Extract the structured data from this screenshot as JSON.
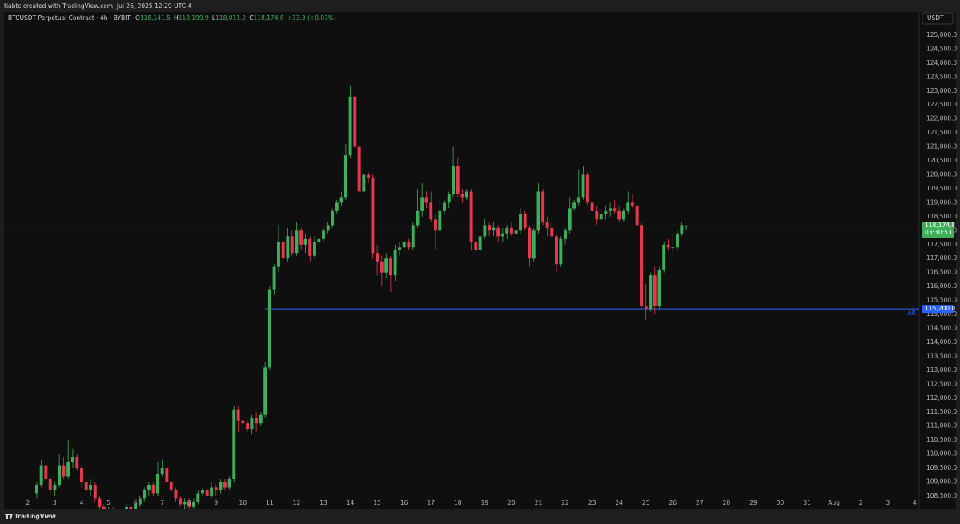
{
  "header": {
    "credit": "tiabtc created with TradingView.com, Jul 26, 2025 12:29 UTC-4"
  },
  "chart_data": {
    "type": "candlestick",
    "title": "BTCUSDT Perpetual Contract · 4h · BYBIT",
    "ohlc_legend": [
      {
        "key": "O",
        "value": "118,141.5"
      },
      {
        "key": "H",
        "value": "118,199.9"
      },
      {
        "key": "L",
        "value": "118,011.2"
      },
      {
        "key": "C",
        "value": "118,174.8"
      }
    ],
    "change": "+33.3 (+0.03%)",
    "currency": "USDT",
    "colors": {
      "up": "#3fae5a",
      "down": "#e8384f",
      "level": "#2962ff"
    },
    "grid": false,
    "xlim": [
      1.11,
      35.17
    ],
    "ylim": [
      108040,
      125830
    ],
    "xticks": [
      2,
      3,
      4,
      5,
      6,
      7,
      8,
      9,
      10,
      11,
      12,
      13,
      14,
      15,
      16,
      17,
      18,
      19,
      20,
      21,
      22,
      23,
      24,
      25,
      26,
      27,
      28,
      29,
      30,
      31,
      {
        "value": 32,
        "label": "Aug"
      },
      {
        "value": 33,
        "label": "2"
      },
      {
        "value": 34,
        "label": "3"
      },
      {
        "value": 35,
        "label": "4"
      }
    ],
    "yticks": [
      {
        "value": 108500,
        "label": "108,500.0"
      },
      {
        "value": 109000,
        "label": "109,000.0"
      },
      {
        "value": 109500,
        "label": "109,500.0"
      },
      {
        "value": 110000,
        "label": "110,000.0"
      },
      {
        "value": 110500,
        "label": "110,500.0"
      },
      {
        "value": 111000,
        "label": "111,000.0"
      },
      {
        "value": 111500,
        "label": "111,500.0"
      },
      {
        "value": 112000,
        "label": "112,000.0"
      },
      {
        "value": 112500,
        "label": "112,500.0"
      },
      {
        "value": 113000,
        "label": "113,000.0"
      },
      {
        "value": 113500,
        "label": "113,500.0"
      },
      {
        "value": 114000,
        "label": "114,000.0"
      },
      {
        "value": 114500,
        "label": "114,500.0"
      },
      {
        "value": 115000,
        "label": "115,000.0"
      },
      {
        "value": 115500,
        "label": "115,500.0"
      },
      {
        "value": 116000,
        "label": "116,000.0"
      },
      {
        "value": 116500,
        "label": "116,500.0"
      },
      {
        "value": 117000,
        "label": "117,000.0"
      },
      {
        "value": 117500,
        "label": "117,500.0"
      },
      {
        "value": 118000,
        "label": "118,000.0"
      },
      {
        "value": 118500,
        "label": "118,500.0"
      },
      {
        "value": 119000,
        "label": "119,000.0"
      },
      {
        "value": 119500,
        "label": "119,500.0"
      },
      {
        "value": 120000,
        "label": "120,000.0"
      },
      {
        "value": 120500,
        "label": "120,500.0"
      },
      {
        "value": 121000,
        "label": "121,000.0"
      },
      {
        "value": 121500,
        "label": "121,500.0"
      },
      {
        "value": 122000,
        "label": "122,000.0"
      },
      {
        "value": 122500,
        "label": "122,500.0"
      },
      {
        "value": 123000,
        "label": "123,000.0"
      },
      {
        "value": 123500,
        "label": "123,500.0"
      },
      {
        "value": 124000,
        "label": "124,000.0"
      },
      {
        "value": 124500,
        "label": "124,500.0"
      },
      {
        "value": 125000,
        "label": "125,000.0"
      }
    ],
    "last_price": {
      "value": 118174.8,
      "label": "118,174.8",
      "countdown": "03:30:53"
    },
    "hline": {
      "value": 115200,
      "label": "115,200.0",
      "name": "AR",
      "start": 10.83
    },
    "x": [
      2.33,
      2.5,
      2.67,
      2.83,
      3,
      3.17,
      3.33,
      3.5,
      3.67,
      3.83,
      4,
      4.17,
      4.33,
      4.5,
      4.67,
      4.83,
      5,
      5.17,
      5.33,
      5.5,
      5.67,
      5.83,
      6,
      6.17,
      6.33,
      6.5,
      6.67,
      6.83,
      7,
      7.17,
      7.33,
      7.5,
      7.67,
      7.83,
      8,
      8.17,
      8.33,
      8.5,
      8.67,
      8.83,
      9,
      9.17,
      9.33,
      9.5,
      9.67,
      9.83,
      10,
      10.17,
      10.33,
      10.5,
      10.67,
      10.83,
      11,
      11.17,
      11.33,
      11.5,
      11.67,
      11.83,
      12,
      12.17,
      12.33,
      12.5,
      12.67,
      12.83,
      13,
      13.17,
      13.33,
      13.5,
      13.67,
      13.83,
      14,
      14.17,
      14.33,
      14.5,
      14.67,
      14.83,
      15,
      15.17,
      15.33,
      15.5,
      15.67,
      15.83,
      16,
      16.17,
      16.33,
      16.5,
      16.67,
      16.83,
      17,
      17.17,
      17.33,
      17.5,
      17.67,
      17.83,
      18,
      18.17,
      18.33,
      18.5,
      18.67,
      18.83,
      19,
      19.17,
      19.33,
      19.5,
      19.67,
      19.83,
      20,
      20.17,
      20.33,
      20.5,
      20.67,
      20.83,
      21,
      21.17,
      21.33,
      21.5,
      21.67,
      21.83,
      22,
      22.17,
      22.33,
      22.5,
      22.67,
      22.83,
      23,
      23.17,
      23.33,
      23.5,
      23.67,
      23.83,
      24,
      24.17,
      24.33,
      24.5,
      24.67,
      24.83,
      25,
      25.17,
      25.33,
      25.5,
      25.67,
      25.83,
      26,
      26.17,
      26.33,
      26.5
    ],
    "ohlc": [
      [
        108600,
        109000,
        108400,
        108900
      ],
      [
        108900,
        109800,
        108800,
        109600
      ],
      [
        109600,
        109700,
        109000,
        109100
      ],
      [
        109100,
        109200,
        108600,
        108700
      ],
      [
        108700,
        109000,
        108500,
        108900
      ],
      [
        108900,
        110000,
        108800,
        109600
      ],
      [
        109600,
        109900,
        109100,
        109200
      ],
      [
        109200,
        110500,
        109100,
        109700
      ],
      [
        109700,
        110200,
        109500,
        109900
      ],
      [
        109900,
        110000,
        109400,
        109500
      ],
      [
        109500,
        109600,
        108800,
        109000
      ],
      [
        109000,
        109100,
        108600,
        108700
      ],
      [
        108700,
        109100,
        108500,
        108900
      ],
      [
        108900,
        109000,
        108300,
        108400
      ],
      [
        108400,
        108500,
        107900,
        108100
      ],
      [
        108100,
        108200,
        107700,
        107900
      ],
      [
        107900,
        108100,
        107700,
        108000
      ],
      [
        108000,
        108100,
        107600,
        107700
      ],
      [
        107700,
        107800,
        107400,
        107600
      ],
      [
        107600,
        108000,
        107500,
        107900
      ],
      [
        107900,
        108200,
        107800,
        108100
      ],
      [
        108100,
        108200,
        107800,
        107900
      ],
      [
        107900,
        108300,
        107800,
        108200
      ],
      [
        108200,
        108500,
        108100,
        108400
      ],
      [
        108400,
        108800,
        108300,
        108700
      ],
      [
        108700,
        109000,
        108500,
        108900
      ],
      [
        108900,
        109000,
        108500,
        108600
      ],
      [
        108600,
        109700,
        108500,
        109300
      ],
      [
        109300,
        109800,
        109200,
        109500
      ],
      [
        109500,
        109600,
        108900,
        109000
      ],
      [
        109000,
        109100,
        108600,
        108700
      ],
      [
        108700,
        108800,
        108300,
        108400
      ],
      [
        108400,
        108500,
        108100,
        108200
      ],
      [
        108200,
        108400,
        108000,
        108300
      ],
      [
        108300,
        108400,
        108000,
        108100
      ],
      [
        108100,
        108400,
        108000,
        108300
      ],
      [
        108300,
        108700,
        108200,
        108600
      ],
      [
        108600,
        108800,
        108500,
        108700
      ],
      [
        108700,
        108800,
        108400,
        108500
      ],
      [
        108500,
        109000,
        108400,
        108800
      ],
      [
        108800,
        108900,
        108500,
        108700
      ],
      [
        108700,
        109100,
        108600,
        109000
      ],
      [
        109000,
        109100,
        108700,
        108800
      ],
      [
        108800,
        109200,
        108700,
        109100
      ],
      [
        109100,
        111700,
        109000,
        111600
      ],
      [
        111600,
        111700,
        110800,
        111200
      ],
      [
        111200,
        111500,
        110900,
        111100
      ],
      [
        111100,
        111200,
        110800,
        110900
      ],
      [
        110900,
        111400,
        110700,
        111300
      ],
      [
        111300,
        111500,
        110800,
        111100
      ],
      [
        111100,
        111500,
        111000,
        111400
      ],
      [
        111400,
        113300,
        111300,
        113100
      ],
      [
        113100,
        116000,
        113000,
        115900
      ],
      [
        115900,
        116800,
        115700,
        116700
      ],
      [
        116700,
        118200,
        116500,
        117600
      ],
      [
        117600,
        118300,
        116900,
        117000
      ],
      [
        117000,
        118100,
        116900,
        117800
      ],
      [
        117800,
        118000,
        117100,
        117200
      ],
      [
        117200,
        118300,
        117100,
        118000
      ],
      [
        118000,
        118100,
        117300,
        117500
      ],
      [
        117500,
        117900,
        117200,
        117700
      ],
      [
        117700,
        117800,
        116900,
        117100
      ],
      [
        117100,
        117800,
        117000,
        117600
      ],
      [
        117600,
        117900,
        117400,
        117700
      ],
      [
        117700,
        118100,
        117600,
        118000
      ],
      [
        118000,
        118300,
        117900,
        118200
      ],
      [
        118200,
        118800,
        118100,
        118700
      ],
      [
        118700,
        119100,
        118600,
        119000
      ],
      [
        119000,
        119400,
        118900,
        119200
      ],
      [
        119200,
        121100,
        119100,
        120700
      ],
      [
        120700,
        123200,
        120600,
        122800
      ],
      [
        122800,
        122900,
        120900,
        121000
      ],
      [
        121000,
        121100,
        119300,
        119400
      ],
      [
        119400,
        120100,
        119200,
        120000
      ],
      [
        120000,
        120100,
        119700,
        119900
      ],
      [
        119900,
        120000,
        117000,
        117200
      ],
      [
        117200,
        117500,
        116400,
        116900
      ],
      [
        116900,
        117100,
        116000,
        116500
      ],
      [
        116500,
        117200,
        116300,
        117000
      ],
      [
        117000,
        117100,
        115800,
        116400
      ],
      [
        116400,
        117500,
        116200,
        117300
      ],
      [
        117300,
        117600,
        117100,
        117400
      ],
      [
        117400,
        117800,
        117200,
        117600
      ],
      [
        117600,
        117700,
        117300,
        117400
      ],
      [
        117400,
        118300,
        117300,
        118200
      ],
      [
        118200,
        119500,
        118100,
        118700
      ],
      [
        118700,
        119700,
        118500,
        119200
      ],
      [
        119200,
        119400,
        118800,
        119000
      ],
      [
        119000,
        119400,
        118300,
        118400
      ],
      [
        118400,
        118600,
        117300,
        118000
      ],
      [
        118000,
        119100,
        117900,
        118700
      ],
      [
        118700,
        119100,
        118600,
        119000
      ],
      [
        119000,
        119400,
        118800,
        119300
      ],
      [
        119300,
        121000,
        119200,
        120300
      ],
      [
        120300,
        120600,
        119200,
        119300
      ],
      [
        119300,
        119500,
        119000,
        119200
      ],
      [
        119200,
        119500,
        119100,
        119400
      ],
      [
        119400,
        119500,
        117300,
        117600
      ],
      [
        117600,
        117900,
        117200,
        117300
      ],
      [
        117300,
        117900,
        117200,
        117800
      ],
      [
        117800,
        118400,
        117700,
        118200
      ],
      [
        118200,
        118300,
        117800,
        118000
      ],
      [
        118000,
        118300,
        117800,
        118100
      ],
      [
        118100,
        118200,
        117600,
        117800
      ],
      [
        117800,
        118100,
        117600,
        117900
      ],
      [
        117900,
        118200,
        117700,
        118100
      ],
      [
        118100,
        118300,
        117800,
        117900
      ],
      [
        117900,
        118100,
        117700,
        118000
      ],
      [
        118000,
        118800,
        117900,
        118600
      ],
      [
        118600,
        118700,
        118000,
        118100
      ],
      [
        118100,
        118200,
        116700,
        117000
      ],
      [
        117000,
        118100,
        116900,
        118000
      ],
      [
        118000,
        119700,
        117900,
        119400
      ],
      [
        119400,
        119500,
        118200,
        118300
      ],
      [
        118300,
        118500,
        117800,
        118100
      ],
      [
        118100,
        118300,
        117700,
        117800
      ],
      [
        117800,
        117900,
        116500,
        116800
      ],
      [
        116800,
        117800,
        116700,
        117700
      ],
      [
        117700,
        118100,
        117500,
        118000
      ],
      [
        118000,
        119200,
        117900,
        118800
      ],
      [
        118800,
        119100,
        118700,
        119000
      ],
      [
        119000,
        120200,
        118900,
        119200
      ],
      [
        119200,
        120300,
        119100,
        120000
      ],
      [
        120000,
        120100,
        118900,
        119000
      ],
      [
        119000,
        119200,
        118500,
        118700
      ],
      [
        118700,
        118900,
        118200,
        118400
      ],
      [
        118400,
        118800,
        118300,
        118600
      ],
      [
        118600,
        118900,
        118400,
        118700
      ],
      [
        118700,
        119000,
        118500,
        118800
      ],
      [
        118800,
        119100,
        118600,
        118700
      ],
      [
        118700,
        118900,
        118300,
        118400
      ],
      [
        118400,
        118800,
        118300,
        118700
      ],
      [
        118700,
        119400,
        118600,
        119000
      ],
      [
        119000,
        119300,
        118800,
        118900
      ],
      [
        118900,
        119000,
        118100,
        118200
      ],
      [
        118200,
        118300,
        115200,
        115300
      ],
      [
        115300,
        116100,
        114800,
        115200
      ],
      [
        115200,
        116500,
        115100,
        116400
      ],
      [
        116400,
        116700,
        115000,
        115300
      ],
      [
        115300,
        116700,
        115200,
        116600
      ],
      [
        116600,
        117600,
        116500,
        117500
      ],
      [
        117500,
        117700,
        117300,
        117400
      ],
      [
        117400,
        117900,
        117200,
        117400
      ],
      [
        117400,
        118000,
        117300,
        117900
      ],
      [
        117900,
        118300,
        117800,
        118200
      ],
      [
        118141.5,
        118199.9,
        118011.2,
        118174.8
      ]
    ]
  },
  "footer": {
    "brand": "TradingView"
  }
}
